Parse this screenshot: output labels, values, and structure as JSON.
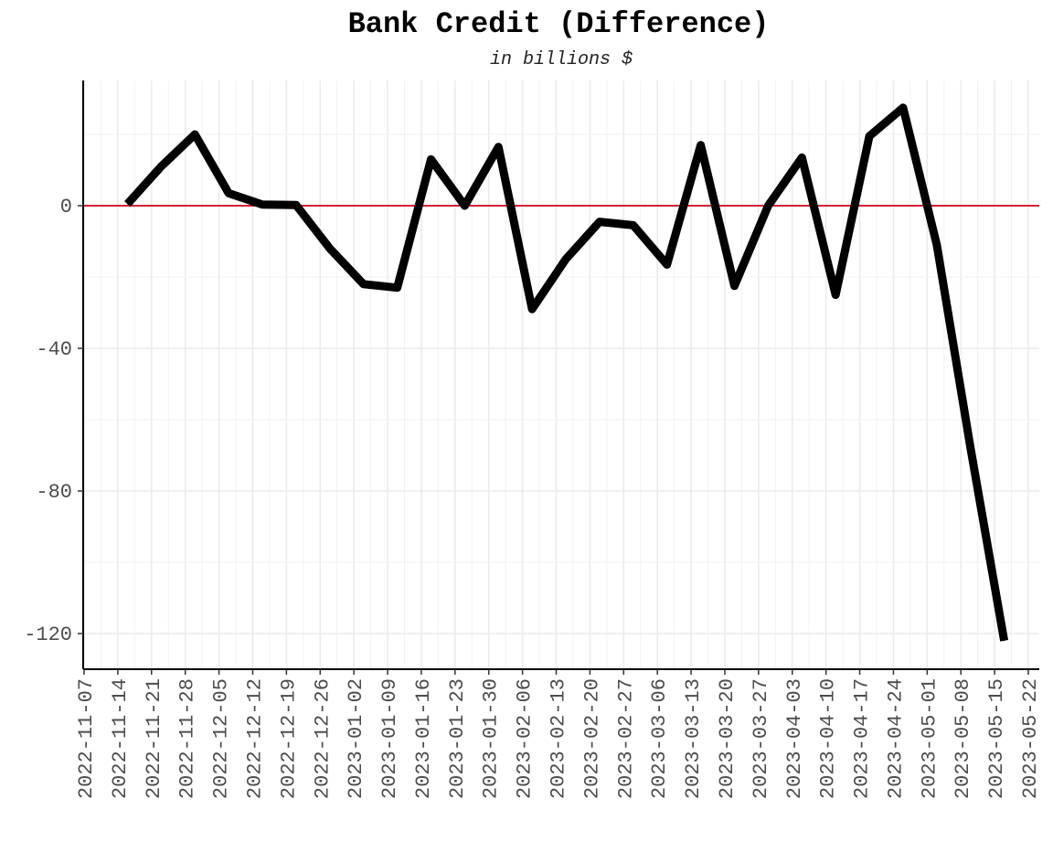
{
  "chart_data": {
    "type": "line",
    "title": "Bank Credit (Difference)",
    "subtitle": "in billions $",
    "xlabel": "",
    "ylabel": "",
    "x_ticks": [
      "2022-11-07",
      "2022-11-14",
      "2022-11-21",
      "2022-11-28",
      "2022-12-05",
      "2022-12-12",
      "2022-12-19",
      "2022-12-26",
      "2023-01-02",
      "2023-01-09",
      "2023-01-16",
      "2023-01-23",
      "2023-01-30",
      "2023-02-06",
      "2023-02-13",
      "2023-02-20",
      "2023-02-27",
      "2023-03-06",
      "2023-03-13",
      "2023-03-20",
      "2023-03-27",
      "2023-04-03",
      "2023-04-10",
      "2023-04-17",
      "2023-04-24",
      "2023-05-01",
      "2023-05-08",
      "2023-05-15",
      "2023-05-22"
    ],
    "y_ticks": [
      0,
      -40,
      -80,
      -120
    ],
    "ylim": [
      -130,
      35
    ],
    "grid": true,
    "reference_line": {
      "y": 0,
      "color": "#d0021b"
    },
    "line_color": "#000000",
    "series": [
      {
        "x": [
          "2022-11-16",
          "2022-11-23",
          "2022-11-30",
          "2022-12-07",
          "2022-12-14",
          "2022-12-21",
          "2022-12-28",
          "2023-01-04",
          "2023-01-11",
          "2023-01-18",
          "2023-01-25",
          "2023-02-01",
          "2023-02-08",
          "2023-02-15",
          "2023-02-22",
          "2023-03-01",
          "2023-03-08",
          "2023-03-15",
          "2023-03-22",
          "2023-03-29",
          "2023-04-05",
          "2023-04-12",
          "2023-04-19",
          "2023-04-26",
          "2023-05-03",
          "2023-05-10",
          "2023-05-17"
        ],
        "values": [
          0.5,
          11,
          20,
          3.5,
          0.3,
          0.2,
          -12,
          -22,
          -23,
          13,
          0,
          16.5,
          -29,
          -15,
          -4.5,
          -5.5,
          -16.5,
          17,
          -22.5,
          0,
          13.5,
          -25,
          19.5,
          27.5,
          -11,
          -68,
          -122
        ]
      }
    ]
  }
}
